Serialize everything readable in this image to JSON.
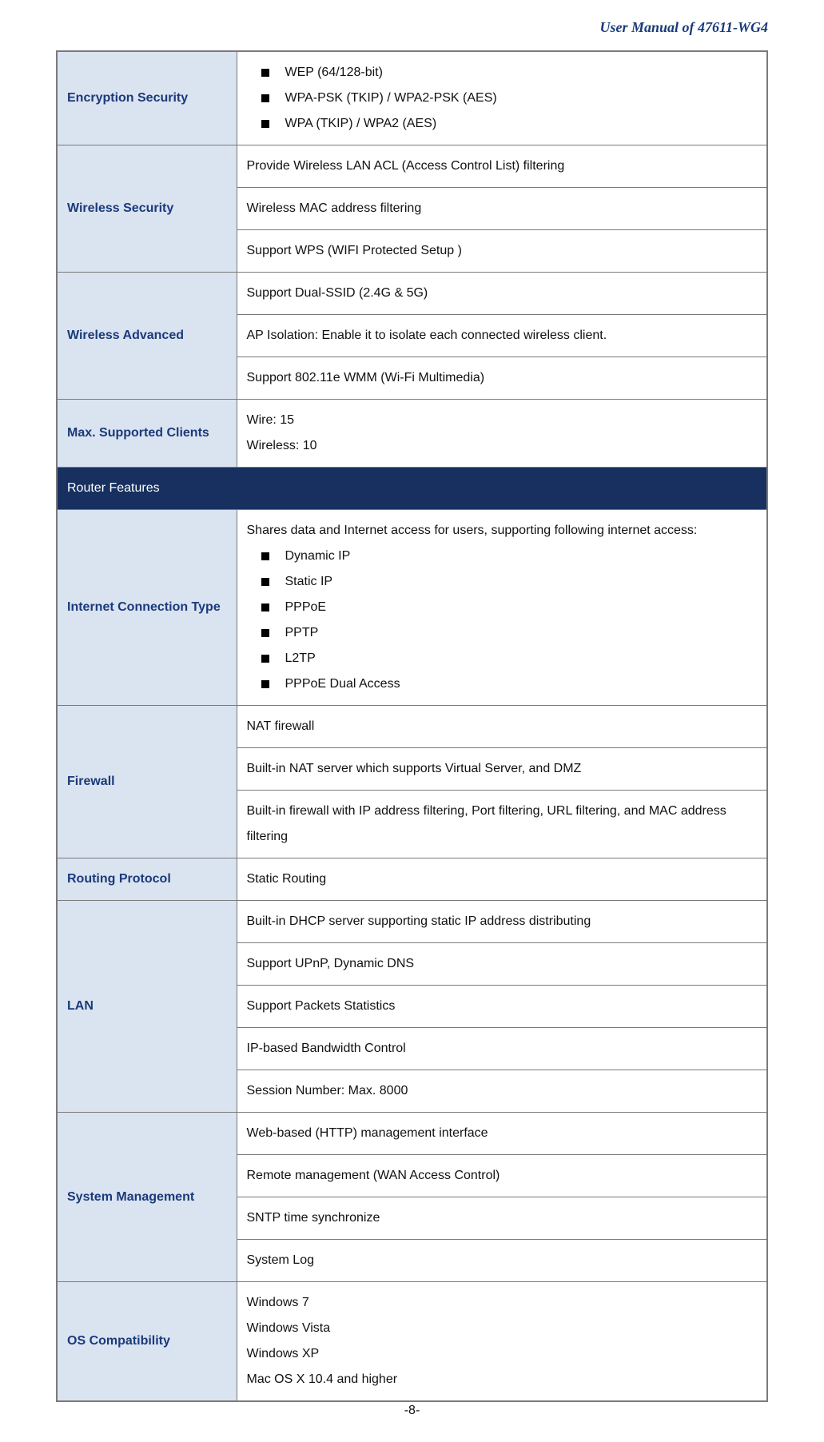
{
  "doc": {
    "header": "User Manual of 47611-WG4",
    "page_number": "-8-"
  },
  "colors": {
    "header_text": "#1a3a7a",
    "table_border": "#7a7a7a",
    "label_bg": "#dae3f0",
    "label_text": "#1a3a7a",
    "section_bg": "#17305f",
    "section_text": "#ffffff",
    "body_text": "#111111",
    "page_bg": "#ffffff"
  },
  "rows": [
    {
      "label": "Encryption Security",
      "cells": [
        {
          "type": "bullets",
          "items": [
            "WEP (64/128-bit)",
            "WPA-PSK (TKIP) / WPA2-PSK (AES)",
            "WPA (TKIP) / WPA2 (AES)"
          ]
        }
      ]
    },
    {
      "label": "Wireless Security",
      "cells": [
        {
          "type": "text",
          "text": "Provide Wireless LAN ACL (Access Control List) filtering"
        },
        {
          "type": "text",
          "text": "Wireless MAC address filtering"
        },
        {
          "type": "text",
          "text": "Support WPS (WIFI Protected Setup )"
        }
      ]
    },
    {
      "label": "Wireless Advanced",
      "cells": [
        {
          "type": "text",
          "text": "Support Dual-SSID (2.4G & 5G)"
        },
        {
          "type": "text",
          "text": "AP Isolation: Enable it to isolate each connected wireless client."
        },
        {
          "type": "text",
          "text": "Support 802.11e WMM (Wi-Fi Multimedia)"
        }
      ]
    },
    {
      "label": "Max. Supported Clients",
      "cells": [
        {
          "type": "lines",
          "lines": [
            "Wire: 15",
            "Wireless: 10"
          ]
        }
      ]
    },
    {
      "section": "Router Features"
    },
    {
      "label": "Internet Connection Type",
      "cells": [
        {
          "type": "intro_bullets",
          "intro": "Shares data and Internet access for users, supporting following internet access:",
          "items": [
            "Dynamic IP",
            "Static IP",
            "PPPoE",
            "PPTP",
            "L2TP",
            "PPPoE Dual Access"
          ]
        }
      ]
    },
    {
      "label": "Firewall",
      "cells": [
        {
          "type": "text",
          "text": "NAT firewall"
        },
        {
          "type": "text",
          "text": "Built-in NAT server which supports Virtual Server, and DMZ"
        },
        {
          "type": "text",
          "justify": true,
          "text": "Built-in firewall with IP address filtering, Port filtering, URL filtering, and MAC address filtering"
        }
      ]
    },
    {
      "label": "Routing Protocol",
      "cells": [
        {
          "type": "text",
          "text": "Static Routing"
        }
      ]
    },
    {
      "label": "LAN",
      "cells": [
        {
          "type": "text",
          "text": "Built-in DHCP server supporting static IP address distributing"
        },
        {
          "type": "text",
          "text": "Support UPnP, Dynamic DNS"
        },
        {
          "type": "text",
          "text": "Support Packets Statistics"
        },
        {
          "type": "text",
          "text": "IP-based Bandwidth Control"
        },
        {
          "type": "text",
          "text": "Session Number: Max. 8000"
        }
      ]
    },
    {
      "label": "System Management",
      "cells": [
        {
          "type": "text",
          "text": "Web-based (HTTP) management interface"
        },
        {
          "type": "text",
          "text": "Remote management (WAN Access Control)"
        },
        {
          "type": "text",
          "text": "SNTP time synchronize"
        },
        {
          "type": "text",
          "text": "System Log"
        }
      ]
    },
    {
      "label": "OS Compatibility",
      "cells": [
        {
          "type": "lines",
          "lines": [
            "Windows 7",
            "Windows Vista",
            "Windows XP",
            "Mac OS X 10.4 and higher"
          ]
        }
      ]
    }
  ]
}
